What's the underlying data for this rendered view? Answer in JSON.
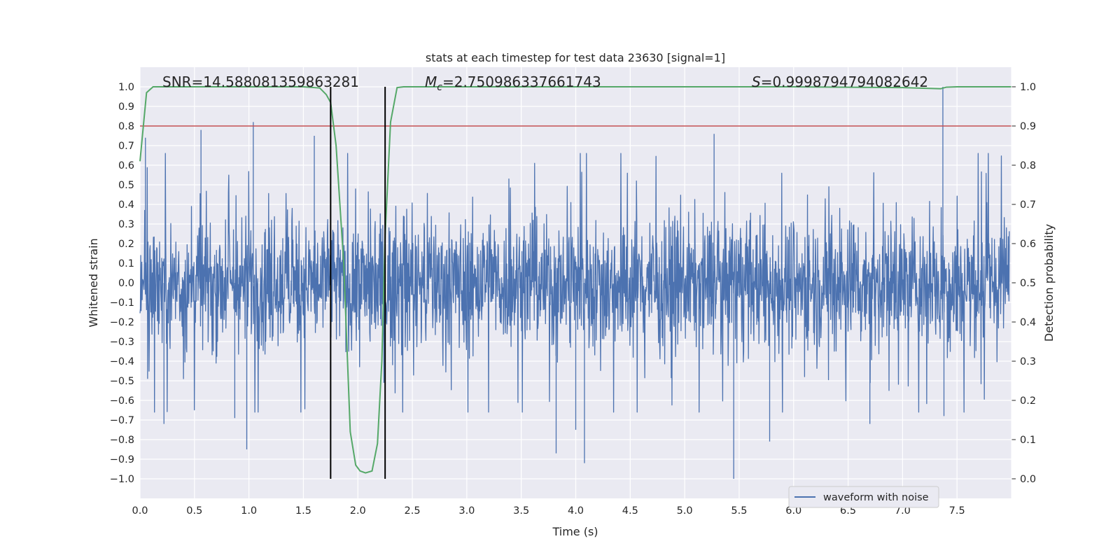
{
  "chart_data": {
    "type": "line",
    "title": "stats at each timestep for test data 23630 [signal=1]",
    "xlabel": "Time (s)",
    "ylabel": "Whitened strain",
    "ylabel_right": "Detection probability",
    "xlim": [
      0.0,
      8.0
    ],
    "ylim": [
      -1.1,
      1.1
    ],
    "ylim_right": [
      -0.05,
      1.05
    ],
    "x_ticks": [
      0.0,
      0.5,
      1.0,
      1.5,
      2.0,
      2.5,
      3.0,
      3.5,
      4.0,
      4.5,
      5.0,
      5.5,
      6.0,
      6.5,
      7.0,
      7.5
    ],
    "x_tick_labels": [
      "0.0",
      "0.5",
      "1.0",
      "1.5",
      "2.0",
      "2.5",
      "3.0",
      "3.5",
      "4.0",
      "4.5",
      "5.0",
      "5.5",
      "6.0",
      "6.5",
      "7.0",
      "7.5"
    ],
    "y_ticks": [
      1.0,
      0.9,
      0.8,
      0.7,
      0.6,
      0.5,
      0.4,
      0.3,
      0.2,
      0.1,
      0.0,
      -0.1,
      -0.2,
      -0.3,
      -0.4,
      -0.5,
      -0.6,
      -0.7,
      -0.8,
      -0.9,
      -1.0
    ],
    "y_tick_labels": [
      "1.0",
      "0.9",
      "0.8",
      "0.7",
      "0.6",
      "0.5",
      "0.4",
      "0.3",
      "0.2",
      "0.1",
      "0.0",
      "−0.1",
      "−0.2",
      "−0.3",
      "−0.4",
      "−0.5",
      "−0.6",
      "−0.7",
      "−0.8",
      "−0.9",
      "−1.0"
    ],
    "y_right_ticks": [
      1.0,
      0.9,
      0.8,
      0.7,
      0.6,
      0.5,
      0.4,
      0.3,
      0.2,
      0.1,
      0.0
    ],
    "y_right_tick_labels": [
      "1.0",
      "0.9",
      "0.8",
      "0.7",
      "0.6",
      "0.5",
      "0.4",
      "0.3",
      "0.2",
      "0.1",
      "0.0"
    ],
    "annotations": {
      "snr": "SNR=14.588081359863281",
      "mc_symbol": "M",
      "mc_sub": "c",
      "mc_value": "=2.750986337661743",
      "s_symbol": "S",
      "s_value": "=0.9998794794082642"
    },
    "threshold_line": {
      "value": 0.9,
      "axis": "right",
      "color": "#c44e52"
    },
    "event_window": {
      "start": 1.75,
      "end": 2.25,
      "y_from": -1.0,
      "y_to": 1.0,
      "color": "#000000"
    },
    "legend": {
      "label": "waveform with noise",
      "placement": "lower-right"
    },
    "series": [
      {
        "name": "waveform with noise",
        "axis": "left",
        "color": "#4c72b0",
        "style": "dense noisy waveform, samples 0-8 s, band about ±0.4 with spikes",
        "peaks": [
          {
            "x": 0.05,
            "y": 0.74
          },
          {
            "x": 0.22,
            "y": -0.72
          },
          {
            "x": 0.56,
            "y": 0.78
          },
          {
            "x": 0.87,
            "y": -0.69
          },
          {
            "x": 0.98,
            "y": -0.85
          },
          {
            "x": 1.04,
            "y": 0.82
          },
          {
            "x": 1.6,
            "y": 0.75
          },
          {
            "x": 3.82,
            "y": -0.87
          },
          {
            "x": 4.08,
            "y": -0.92
          },
          {
            "x": 4.0,
            "y": -0.75
          },
          {
            "x": 5.27,
            "y": 0.76
          },
          {
            "x": 5.45,
            "y": -1.0
          },
          {
            "x": 5.78,
            "y": -0.81
          },
          {
            "x": 6.7,
            "y": -0.72
          },
          {
            "x": 7.37,
            "y": 1.0
          },
          {
            "x": 7.38,
            "y": -0.68
          }
        ]
      },
      {
        "name": "detection probability",
        "axis": "right",
        "color": "#55a868",
        "x": [
          0.0,
          0.06,
          0.12,
          0.5,
          1.0,
          1.5,
          1.65,
          1.71,
          1.75,
          1.8,
          1.87,
          1.93,
          1.98,
          2.02,
          2.07,
          2.13,
          2.18,
          2.22,
          2.25,
          2.3,
          2.36,
          2.42,
          2.5,
          3.0,
          4.0,
          5.0,
          6.0,
          7.0,
          7.35,
          7.4,
          7.5,
          8.0
        ],
        "y": [
          0.81,
          0.985,
          1.0,
          1.0,
          1.0,
          1.0,
          0.997,
          0.98,
          0.96,
          0.85,
          0.55,
          0.12,
          0.035,
          0.02,
          0.015,
          0.02,
          0.09,
          0.3,
          0.62,
          0.91,
          0.998,
          1.0,
          1.0,
          1.0,
          1.0,
          1.0,
          1.0,
          0.998,
          0.995,
          0.999,
          1.0,
          1.0
        ]
      }
    ]
  },
  "colors": {
    "background": "#eaeaf2",
    "grid": "#ffffff",
    "waveform": "#4c72b0",
    "probability": "#55a868",
    "threshold": "#c44e52",
    "marker": "#000000"
  }
}
